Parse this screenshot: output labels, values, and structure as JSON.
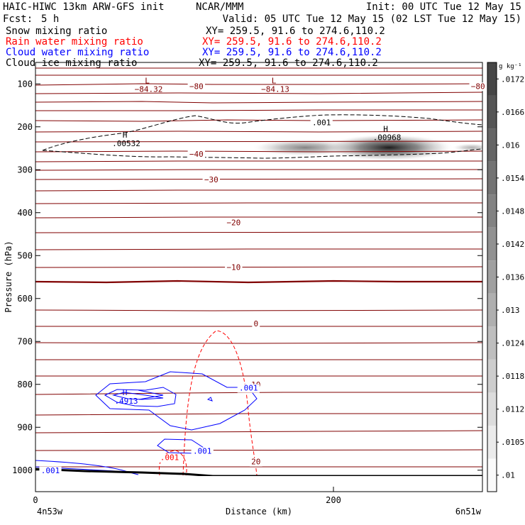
{
  "header": {
    "title": "HAIC-HIWC 13km ARW-GFS init",
    "org": "NCAR/MMM",
    "init": "Init: 00 UTC Tue 12 May 15",
    "fcst_label": "Fcst:",
    "fcst_value": "5 h",
    "valid": "Valid: 05 UTC Tue 12 May 15 (02 LST Tue 12 May 15)"
  },
  "fields": [
    {
      "name": "Snow mixing ratio",
      "xy": "XY= 259.5, 91.6 to 274.6,110.2",
      "color": "#000000"
    },
    {
      "name": "Rain water mixing ratio",
      "xy": "XY= 259.5, 91.6 to 274.6,110.2",
      "color": "#ff0000"
    },
    {
      "name": "Cloud water mixing ratio",
      "xy": "XY= 259.5, 91.6 to 274.6,110.2",
      "color": "#0000ff"
    },
    {
      "name": "Cloud ice mixing ratio",
      "xy": "XY= 259.5, 91.6 to 274.6,110.2",
      "color": "#000000"
    }
  ],
  "chart_data": {
    "type": "heatmap",
    "xlabel": "Distance (km)",
    "ylabel": "Pressure (hPa)",
    "xlim": [
      0,
      300
    ],
    "ylim": [
      1050,
      50
    ],
    "x_ticks": [
      0,
      200
    ],
    "y_ticks": [
      100,
      200,
      300,
      400,
      500,
      600,
      700,
      800,
      900,
      1000
    ],
    "x_endpoints": [
      "4n53w",
      "6n51w"
    ],
    "colorbar": {
      "unit": "g kg⁻¹",
      "ticks": [
        ".01",
        ".0105",
        ".0112",
        ".0118",
        ".0124",
        ".013",
        ".0136",
        ".0142",
        ".0148",
        ".0154",
        ".016",
        ".0166",
        ".0172"
      ]
    },
    "temperature_contours": [
      {
        "value": -80,
        "label": "−80",
        "x": 108,
        "p": 105
      },
      {
        "value": -80,
        "label": "−80",
        "x": 297,
        "p": 105
      },
      {
        "value": -40,
        "label": "−40",
        "x": 108,
        "p": 263
      },
      {
        "value": -30,
        "label": "−30",
        "x": 118,
        "p": 323
      },
      {
        "value": -20,
        "label": "−20",
        "x": 133,
        "p": 423
      },
      {
        "value": -10,
        "label": "−10",
        "x": 133,
        "p": 527
      },
      {
        "value": 0,
        "label": "0",
        "x": 148,
        "p": 658
      },
      {
        "value": 10,
        "label": "10",
        "x": 148,
        "p": 800
      },
      {
        "value": 20,
        "label": "20",
        "x": 148,
        "p": 980
      }
    ],
    "extrema": [
      {
        "type": "L",
        "value": "−84.32",
        "x": 75,
        "p": 105,
        "color": "#800000"
      },
      {
        "type": "L",
        "value": "−84.13",
        "x": 160,
        "p": 105,
        "color": "#800000"
      },
      {
        "type": "H",
        "value": ".00532",
        "x": 60,
        "p": 232,
        "color": "#000000"
      },
      {
        "type": "H",
        "value": ".00968",
        "x": 235,
        "p": 218,
        "color": "#000000"
      },
      {
        "type": "H",
        "value": ".4913",
        "x": 60,
        "p": 832,
        "color": "#0000ff"
      }
    ],
    "contour_labels": [
      {
        "text": ".001",
        "x": 192,
        "p": 190,
        "color": "#000000"
      },
      {
        "text": ".001",
        "x": 143,
        "p": 808,
        "color": "#0000ff"
      },
      {
        "text": ".001",
        "x": 112,
        "p": 955,
        "color": "#0000ff"
      },
      {
        "text": ".001",
        "x": 90,
        "p": 970,
        "color": "#ff0000"
      },
      {
        "text": ".001",
        "x": 10,
        "p": 1000,
        "color": "#0000ff"
      }
    ]
  }
}
